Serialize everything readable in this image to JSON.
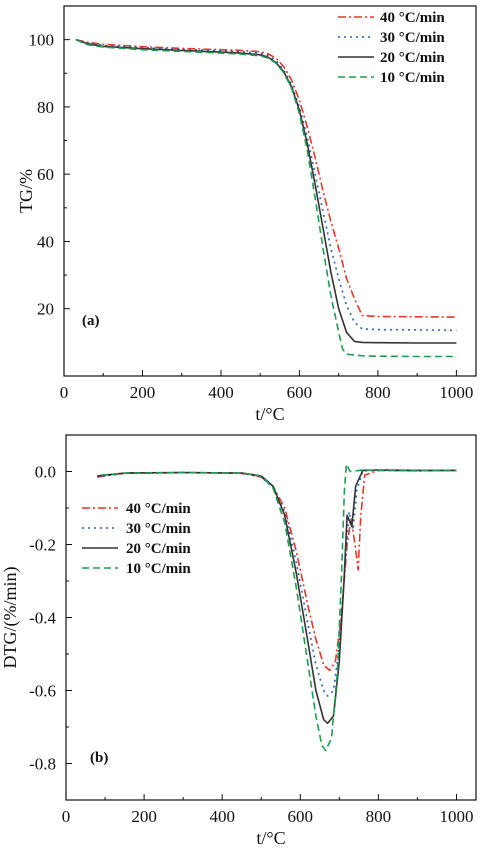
{
  "chart_data": [
    {
      "type": "line",
      "panel_label": "(a)",
      "xlabel": "t/°C",
      "ylabel": "TG/%",
      "xlim": [
        0,
        1050
      ],
      "ylim": [
        0,
        110
      ],
      "xticks": [
        0,
        200,
        400,
        600,
        800,
        1000
      ],
      "yticks": [
        20,
        40,
        60,
        80,
        100
      ],
      "legend_position": "top-right",
      "series": [
        {
          "name": "40 °C/min",
          "color": "#e8362b",
          "dash": "dashdot",
          "points": [
            [
              30,
              100
            ],
            [
              60,
              99.2
            ],
            [
              100,
              98.6
            ],
            [
              200,
              97.9
            ],
            [
              300,
              97.4
            ],
            [
              400,
              97
            ],
            [
              450,
              96.8
            ],
            [
              500,
              96.4
            ],
            [
              520,
              95.8
            ],
            [
              540,
              94.5
            ],
            [
              560,
              92
            ],
            [
              580,
              88
            ],
            [
              600,
              82
            ],
            [
              620,
              74
            ],
            [
              640,
              65
            ],
            [
              660,
              55
            ],
            [
              680,
              46
            ],
            [
              700,
              38
            ],
            [
              720,
              29
            ],
            [
              740,
              23
            ],
            [
              760,
              18
            ],
            [
              800,
              17.7
            ],
            [
              900,
              17.6
            ],
            [
              1000,
              17.5
            ]
          ]
        },
        {
          "name": "30 °C/min",
          "color": "#2a5fbf",
          "dash": "dotted",
          "points": [
            [
              30,
              100
            ],
            [
              60,
              99
            ],
            [
              100,
              98.3
            ],
            [
              200,
              97.6
            ],
            [
              300,
              97.1
            ],
            [
              400,
              96.7
            ],
            [
              450,
              96.4
            ],
            [
              500,
              96
            ],
            [
              520,
              95.3
            ],
            [
              540,
              93.8
            ],
            [
              560,
              91
            ],
            [
              580,
              86.5
            ],
            [
              600,
              80
            ],
            [
              620,
              71
            ],
            [
              640,
              60
            ],
            [
              660,
              49
            ],
            [
              680,
              38
            ],
            [
              700,
              29
            ],
            [
              720,
              21
            ],
            [
              740,
              16
            ],
            [
              760,
              14
            ],
            [
              800,
              13.8
            ],
            [
              900,
              13.7
            ],
            [
              1000,
              13.6
            ]
          ]
        },
        {
          "name": "20 °C/min",
          "color": "#333333",
          "dash": "solid",
          "points": [
            [
              30,
              100
            ],
            [
              60,
              98.8
            ],
            [
              100,
              98
            ],
            [
              200,
              97.3
            ],
            [
              300,
              96.8
            ],
            [
              400,
              96.3
            ],
            [
              450,
              96
            ],
            [
              500,
              95.5
            ],
            [
              520,
              94.8
            ],
            [
              540,
              93.2
            ],
            [
              560,
              90.5
            ],
            [
              580,
              86
            ],
            [
              600,
              79
            ],
            [
              620,
              69
            ],
            [
              640,
              57
            ],
            [
              660,
              44
            ],
            [
              680,
              31
            ],
            [
              700,
              20
            ],
            [
              720,
              13
            ],
            [
              740,
              10.3
            ],
            [
              760,
              10
            ],
            [
              800,
              9.9
            ],
            [
              900,
              9.8
            ],
            [
              1000,
              9.8
            ]
          ]
        },
        {
          "name": "10 °C/min",
          "color": "#1f9e4f",
          "dash": "dashed",
          "points": [
            [
              30,
              100
            ],
            [
              60,
              98.5
            ],
            [
              100,
              97.8
            ],
            [
              200,
              97
            ],
            [
              300,
              96.5
            ],
            [
              400,
              96
            ],
            [
              450,
              95.7
            ],
            [
              500,
              95.2
            ],
            [
              520,
              94.5
            ],
            [
              540,
              93
            ],
            [
              560,
              90.2
            ],
            [
              580,
              85.5
            ],
            [
              600,
              78
            ],
            [
              620,
              67
            ],
            [
              640,
              53
            ],
            [
              660,
              38
            ],
            [
              680,
              24
            ],
            [
              700,
              13
            ],
            [
              710,
              8
            ],
            [
              720,
              6.5
            ],
            [
              760,
              6
            ],
            [
              800,
              5.9
            ],
            [
              900,
              5.8
            ],
            [
              1000,
              5.8
            ]
          ]
        }
      ]
    },
    {
      "type": "line",
      "panel_label": "(b)",
      "xlabel": "t/°C",
      "ylabel": "DTG/(%/min)",
      "xlim": [
        0,
        1050
      ],
      "ylim": [
        -0.9,
        0.1
      ],
      "xticks": [
        0,
        200,
        400,
        600,
        800,
        1000
      ],
      "yticks": [
        0.0,
        -0.2,
        -0.4,
        -0.6,
        -0.8
      ],
      "ytick_labels": [
        "0.0",
        "-0.2",
        "-0.4",
        "-0.6",
        "-0.8"
      ],
      "legend_position": "left",
      "series": [
        {
          "name": "40 °C/min",
          "color": "#e8362b",
          "dash": "dashdot",
          "points": [
            [
              80,
              -0.015
            ],
            [
              150,
              -0.005
            ],
            [
              300,
              -0.003
            ],
            [
              450,
              -0.005
            ],
            [
              500,
              -0.015
            ],
            [
              530,
              -0.04
            ],
            [
              560,
              -0.1
            ],
            [
              590,
              -0.22
            ],
            [
              620,
              -0.37
            ],
            [
              640,
              -0.46
            ],
            [
              660,
              -0.53
            ],
            [
              675,
              -0.545
            ],
            [
              690,
              -0.52
            ],
            [
              705,
              -0.4
            ],
            [
              720,
              -0.2
            ],
            [
              730,
              -0.13
            ],
            [
              740,
              -0.2
            ],
            [
              748,
              -0.27
            ],
            [
              755,
              -0.12
            ],
            [
              765,
              -0.01
            ],
            [
              800,
              0.003
            ],
            [
              900,
              0.002
            ],
            [
              1000,
              0.003
            ]
          ]
        },
        {
          "name": "30 °C/min",
          "color": "#2a5fbf",
          "dash": "dotted",
          "points": [
            [
              80,
              -0.015
            ],
            [
              150,
              -0.005
            ],
            [
              300,
              -0.003
            ],
            [
              450,
              -0.005
            ],
            [
              500,
              -0.015
            ],
            [
              530,
              -0.045
            ],
            [
              560,
              -0.11
            ],
            [
              590,
              -0.25
            ],
            [
              620,
              -0.42
            ],
            [
              640,
              -0.53
            ],
            [
              660,
              -0.6
            ],
            [
              670,
              -0.615
            ],
            [
              685,
              -0.6
            ],
            [
              700,
              -0.48
            ],
            [
              715,
              -0.25
            ],
            [
              725,
              -0.11
            ],
            [
              735,
              -0.16
            ],
            [
              745,
              -0.05
            ],
            [
              760,
              0.002
            ],
            [
              800,
              0.003
            ],
            [
              900,
              0.002
            ],
            [
              1000,
              0.003
            ]
          ]
        },
        {
          "name": "20 °C/min",
          "color": "#333333",
          "dash": "solid",
          "points": [
            [
              80,
              -0.012
            ],
            [
              150,
              -0.004
            ],
            [
              300,
              -0.003
            ],
            [
              450,
              -0.004
            ],
            [
              500,
              -0.012
            ],
            [
              530,
              -0.04
            ],
            [
              560,
              -0.12
            ],
            [
              590,
              -0.28
            ],
            [
              620,
              -0.47
            ],
            [
              640,
              -0.6
            ],
            [
              660,
              -0.68
            ],
            [
              670,
              -0.69
            ],
            [
              685,
              -0.67
            ],
            [
              700,
              -0.52
            ],
            [
              712,
              -0.3
            ],
            [
              720,
              -0.12
            ],
            [
              732,
              -0.15
            ],
            [
              742,
              -0.04
            ],
            [
              760,
              0.003
            ],
            [
              800,
              0.004
            ],
            [
              900,
              0.003
            ],
            [
              1000,
              0.003
            ]
          ]
        },
        {
          "name": "10 °C/min",
          "color": "#1f9e4f",
          "dash": "dashed",
          "points": [
            [
              90,
              -0.01
            ],
            [
              150,
              -0.005
            ],
            [
              300,
              -0.003
            ],
            [
              450,
              -0.004
            ],
            [
              500,
              -0.012
            ],
            [
              530,
              -0.045
            ],
            [
              560,
              -0.14
            ],
            [
              590,
              -0.32
            ],
            [
              620,
              -0.53
            ],
            [
              640,
              -0.67
            ],
            [
              655,
              -0.75
            ],
            [
              665,
              -0.765
            ],
            [
              680,
              -0.73
            ],
            [
              695,
              -0.55
            ],
            [
              705,
              -0.3
            ],
            [
              713,
              -0.05
            ],
            [
              718,
              0.02
            ],
            [
              728,
              0.0
            ],
            [
              760,
              0.004
            ],
            [
              800,
              0.003
            ],
            [
              900,
              0.002
            ],
            [
              1000,
              0.003
            ]
          ]
        }
      ]
    }
  ]
}
